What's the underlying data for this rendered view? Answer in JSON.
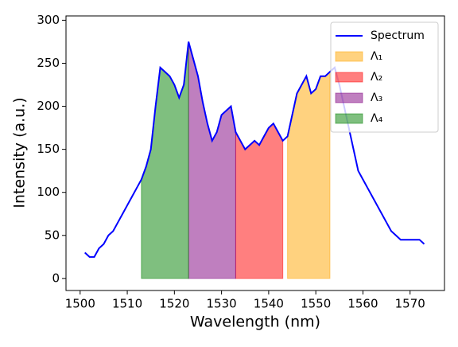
{
  "chart_data": {
    "type": "line",
    "xlabel": "Wavelength (nm)",
    "ylabel": "Intensity (a.u.)",
    "x": [
      1501,
      1502,
      1503,
      1504,
      1505,
      1506,
      1507,
      1508,
      1509,
      1510,
      1511,
      1512,
      1513,
      1514,
      1515,
      1516,
      1517,
      1518,
      1519,
      1520,
      1521,
      1522,
      1523,
      1524,
      1525,
      1526,
      1527,
      1528,
      1529,
      1530,
      1531,
      1532,
      1533,
      1534,
      1535,
      1536,
      1537,
      1538,
      1539,
      1540,
      1541,
      1542,
      1543,
      1544,
      1545,
      1546,
      1547,
      1548,
      1549,
      1550,
      1551,
      1552,
      1553,
      1554,
      1555,
      1556,
      1557,
      1558,
      1559,
      1560,
      1561,
      1562,
      1563,
      1564,
      1565,
      1566,
      1567,
      1568,
      1569,
      1570,
      1571,
      1572,
      1573
    ],
    "series": [
      {
        "name": "Spectrum",
        "color": "#0000ff",
        "values": [
          30,
          25,
          25,
          35,
          40,
          50,
          55,
          65,
          75,
          85,
          95,
          105,
          115,
          130,
          150,
          200,
          245,
          240,
          235,
          225,
          210,
          225,
          275,
          255,
          235,
          205,
          180,
          160,
          170,
          190,
          195,
          200,
          170,
          160,
          150,
          155,
          160,
          155,
          165,
          175,
          180,
          170,
          160,
          165,
          190,
          215,
          225,
          235,
          215,
          220,
          235,
          235,
          240,
          245,
          225,
          200,
          175,
          150,
          125,
          115,
          105,
          95,
          85,
          75,
          65,
          55,
          50,
          45,
          45,
          45,
          45,
          45,
          40
        ]
      }
    ],
    "regions": [
      {
        "name": "Λ₁",
        "color": "#ffa500",
        "range": [
          1544,
          1553
        ]
      },
      {
        "name": "Λ₂",
        "color": "#ff0000",
        "range": [
          1533,
          1543
        ]
      },
      {
        "name": "Λ₃",
        "color": "#800080",
        "range": [
          1523,
          1533
        ]
      },
      {
        "name": "Λ₄",
        "color": "#008000",
        "range": [
          1513,
          1523
        ]
      }
    ],
    "alpha": 0.5,
    "xlim": [
      1497,
      1577.3
    ],
    "ylim": [
      -14,
      305
    ],
    "xticks": [
      1500,
      1510,
      1520,
      1530,
      1540,
      1550,
      1560,
      1570
    ],
    "yticks": [
      0,
      50,
      100,
      150,
      200,
      250,
      300
    ],
    "legend": "upper right"
  }
}
